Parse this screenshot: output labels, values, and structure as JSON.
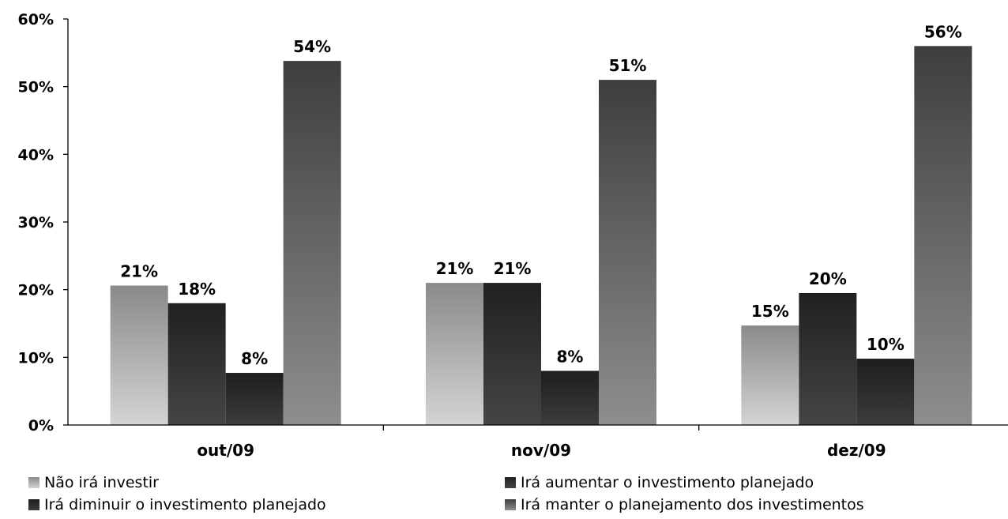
{
  "chart_data": {
    "type": "bar",
    "categories": [
      "out/09",
      "nov/09",
      "dez/09"
    ],
    "series": [
      {
        "name": "Não irá investir",
        "values": [
          20.6,
          21.0,
          14.7
        ],
        "labels": [
          "21%",
          "21%",
          "15%"
        ],
        "color_top": "#8a8a8a",
        "color_bottom": "#d4d4d4"
      },
      {
        "name": "Irá aumentar o investimento planejado",
        "values": [
          18.0,
          21.0,
          19.5
        ],
        "labels": [
          "18%",
          "21%",
          "20%"
        ],
        "color_top": "#202020",
        "color_bottom": "#454545"
      },
      {
        "name": "Irá diminuir o investimento planejado",
        "values": [
          7.7,
          8.0,
          9.8
        ],
        "labels": [
          "8%",
          "8%",
          "10%"
        ],
        "color_top": "#1e1e1e",
        "color_bottom": "#3c3c3c"
      },
      {
        "name": "Irá manter o planejamento dos investimentos",
        "values": [
          53.8,
          51.0,
          56.0
        ],
        "labels": [
          "54%",
          "51%",
          "56%"
        ],
        "color_top": "#3e3e3e",
        "color_bottom": "#8e8e8e"
      }
    ],
    "yticks": [
      "0%",
      "10%",
      "20%",
      "30%",
      "40%",
      "50%",
      "60%"
    ],
    "ylim": [
      0,
      60
    ],
    "grid": false,
    "legend_position": "bottom"
  }
}
